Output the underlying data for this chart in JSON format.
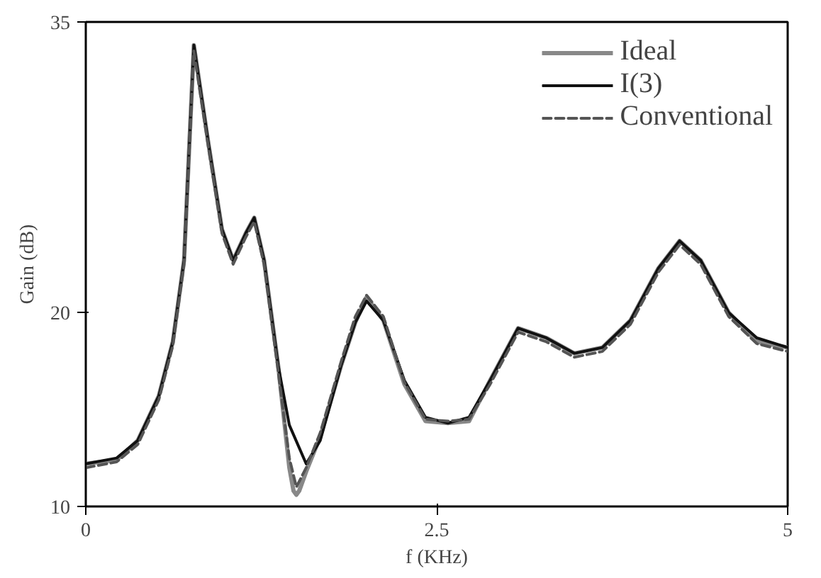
{
  "chart_data": {
    "type": "line",
    "xlabel": "f (KHz)",
    "ylabel": "Gain (dB)",
    "xlim": [
      0,
      5
    ],
    "ylim": [
      10,
      35
    ],
    "xticks": [
      0,
      2.5,
      5
    ],
    "yticks": [
      10,
      20,
      35
    ],
    "grid": false,
    "legend": "top right",
    "marker": "none",
    "series": [
      {
        "name": "Ideal",
        "color": "#888888",
        "line_style": "solid",
        "x": [
          0,
          0.22,
          0.37,
          0.52,
          0.62,
          0.7,
          0.77,
          0.87,
          0.97,
          1.05,
          1.14,
          1.2,
          1.27,
          1.37,
          1.45,
          1.48,
          1.5,
          1.52,
          1.57,
          1.67,
          1.82,
          1.92,
          2.0,
          2.12,
          2.27,
          2.42,
          2.58,
          2.73,
          2.88,
          3.08,
          3.28,
          3.48,
          3.68,
          3.88,
          4.08,
          4.23,
          4.38,
          4.58,
          4.78,
          5.0
        ],
        "values": [
          12.2,
          12.4,
          13.4,
          15.7,
          18.5,
          22.7,
          33.8,
          28.9,
          24.3,
          22.7,
          24.1,
          24.9,
          22.7,
          17.3,
          12.0,
          10.8,
          10.6,
          10.8,
          11.8,
          13.6,
          17.3,
          19.5,
          20.8,
          19.6,
          16.3,
          14.4,
          14.3,
          14.4,
          16.5,
          19.2,
          18.7,
          17.9,
          18.2,
          19.6,
          22.3,
          23.7,
          22.7,
          20.0,
          18.5,
          18.2
        ]
      },
      {
        "name": "I(3)",
        "color": "#111111",
        "line_style": "solid",
        "x": [
          0,
          0.22,
          0.37,
          0.52,
          0.62,
          0.7,
          0.77,
          0.87,
          0.97,
          1.05,
          1.14,
          1.2,
          1.27,
          1.37,
          1.45,
          1.57,
          1.67,
          1.82,
          1.92,
          2.0,
          2.12,
          2.27,
          2.42,
          2.58,
          2.73,
          2.88,
          3.08,
          3.28,
          3.48,
          3.68,
          3.88,
          4.08,
          4.23,
          4.38,
          4.58,
          4.78,
          5.0
        ],
        "values": [
          12.2,
          12.5,
          13.4,
          15.7,
          18.5,
          22.7,
          33.8,
          28.9,
          24.3,
          22.7,
          24.1,
          24.9,
          22.7,
          17.3,
          14.2,
          12.2,
          13.4,
          17.3,
          19.5,
          20.6,
          19.6,
          16.5,
          14.6,
          14.3,
          14.6,
          16.5,
          19.2,
          18.7,
          17.9,
          18.2,
          19.6,
          22.3,
          23.7,
          22.7,
          20.0,
          18.7,
          18.2
        ]
      },
      {
        "name": "Conventional",
        "color": "#555555",
        "line_style": "dashed",
        "x": [
          0,
          0.22,
          0.37,
          0.52,
          0.62,
          0.7,
          0.77,
          0.87,
          0.97,
          1.05,
          1.14,
          1.2,
          1.27,
          1.37,
          1.45,
          1.5,
          1.57,
          1.67,
          1.82,
          1.92,
          2.0,
          2.12,
          2.27,
          2.42,
          2.58,
          2.73,
          2.88,
          3.08,
          3.28,
          3.48,
          3.68,
          3.88,
          4.08,
          4.23,
          4.38,
          4.58,
          4.78,
          5.0
        ],
        "values": [
          12.0,
          12.3,
          13.2,
          15.5,
          18.3,
          22.5,
          33.5,
          28.7,
          24.1,
          22.5,
          23.9,
          24.7,
          22.5,
          17.0,
          12.5,
          11.0,
          12.0,
          13.8,
          17.5,
          19.8,
          20.9,
          19.8,
          16.4,
          14.5,
          14.4,
          14.5,
          16.3,
          19.0,
          18.5,
          17.7,
          18.0,
          19.4,
          22.1,
          23.5,
          22.5,
          19.8,
          18.4,
          18.0
        ]
      }
    ]
  }
}
